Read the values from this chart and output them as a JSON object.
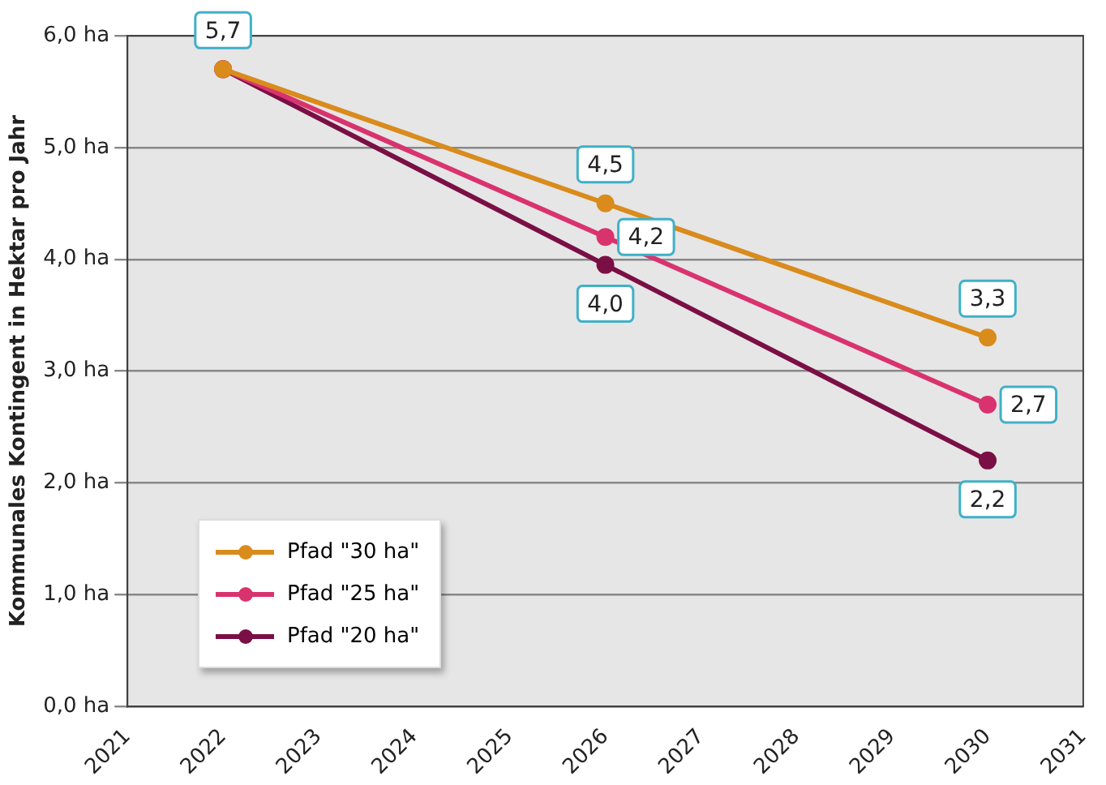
{
  "chart_data": {
    "type": "line",
    "ylabel": "Kommunales Kontingent in Hektar pro Jahr",
    "xlim": [
      2021,
      2031
    ],
    "xticks": [
      2021,
      2022,
      2023,
      2024,
      2025,
      2026,
      2027,
      2028,
      2029,
      2030,
      2031
    ],
    "ylim": [
      0,
      6
    ],
    "yticks": [
      {
        "value": 0,
        "label": "0,0 ha"
      },
      {
        "value": 1,
        "label": "1,0 ha"
      },
      {
        "value": 2,
        "label": "2,0 ha"
      },
      {
        "value": 3,
        "label": "3,0 ha"
      },
      {
        "value": 4,
        "label": "4,0 ha"
      },
      {
        "value": 5,
        "label": "5,0 ha"
      },
      {
        "value": 6,
        "label": "6,0 ha"
      }
    ],
    "grid": "y",
    "legend": "bottom left",
    "marker": "circle",
    "line_style": "solid",
    "series": [
      {
        "name": "Pfad \"30 ha\"",
        "color": "#d98b1c",
        "x": [
          2022,
          2026,
          2030
        ],
        "values": [
          5.7,
          4.5,
          3.3
        ],
        "value_labels": [
          null,
          "4,5",
          "3,3"
        ]
      },
      {
        "name": "Pfad \"25 ha\"",
        "color": "#d9336e",
        "x": [
          2022,
          2026,
          2030
        ],
        "values": [
          5.7,
          4.2,
          2.7
        ],
        "value_labels": [
          null,
          "4,2",
          "2,7"
        ]
      },
      {
        "name": "Pfad \"20 ha\"",
        "color": "#7a0f45",
        "x": [
          2022,
          2026,
          2030
        ],
        "values": [
          5.7,
          3.95,
          2.2
        ],
        "value_labels": [
          "5,7",
          "4,0",
          "2,2"
        ]
      }
    ]
  }
}
